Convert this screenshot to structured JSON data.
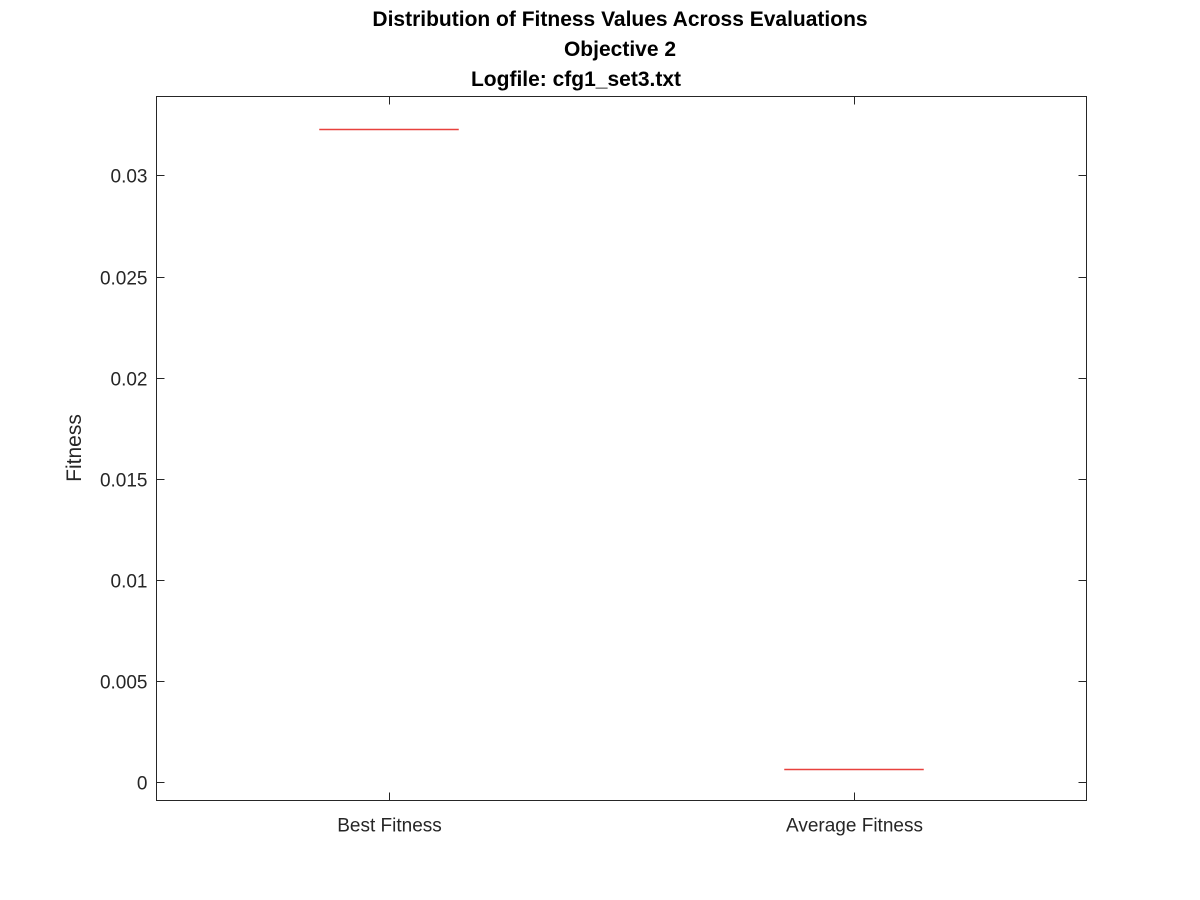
{
  "chart_data": {
    "type": "box",
    "title": [
      "Distribution of Fitness Values Across Evaluations",
      "Objective 2",
      "Logfile: cfg1_set3.txt"
    ],
    "xlabel": "",
    "ylabel": "Fitness",
    "categories": [
      "Best Fitness",
      "Average Fitness"
    ],
    "medians": [
      0.0323,
      0.00068
    ],
    "ylim": [
      -0.0009,
      0.0339
    ],
    "yticks": [
      0,
      0.005,
      0.01,
      0.015,
      0.02,
      0.025,
      0.03
    ],
    "ytick_labels": [
      "0",
      "0.005",
      "0.01",
      "0.015",
      "0.02",
      "0.025",
      "0.03"
    ],
    "grid": false,
    "median_color": "#e8413d",
    "axis_color": "#262626"
  }
}
